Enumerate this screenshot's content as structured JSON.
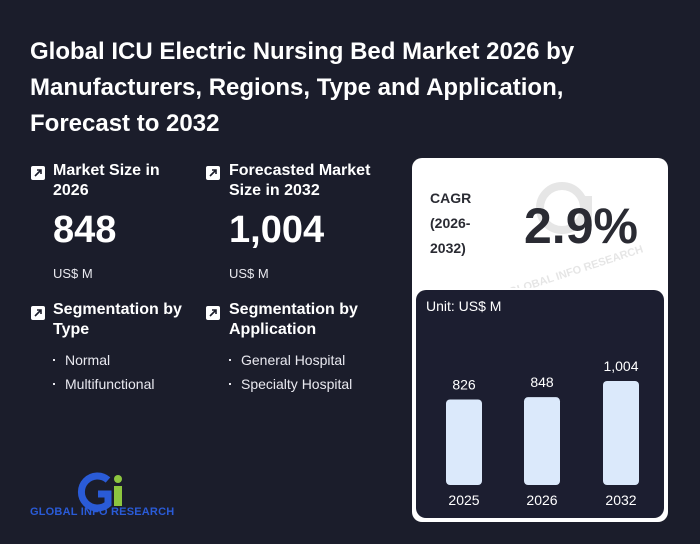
{
  "title": "Global ICU Electric Nursing Bed Market 2026 by Manufacturers, Regions, Type and Application, Forecast to 2032",
  "market_size": {
    "label": "Market Size in 2026",
    "value": "848",
    "unit": "US$ M"
  },
  "forecast": {
    "label": "Forecasted Market Size in 2032",
    "value": "1,004",
    "unit": "US$ M"
  },
  "seg_type": {
    "label": "Segmentation by Type",
    "items": [
      "Normal",
      "Multifunctional"
    ]
  },
  "seg_app": {
    "label": "Segmentation by Application",
    "items": [
      "General Hospital",
      "Specialty Hospital"
    ]
  },
  "cagr": {
    "label": "CAGR (2026-2032)",
    "value": "2.9%"
  },
  "watermark": "GLOBAL INFO RESEARCH",
  "logo": {
    "text": "GLOBAL INFO RESEARCH"
  },
  "colors": {
    "background": "#1b1d2b",
    "bar": "#dbe9fb",
    "panel": "#1c1e30",
    "logo_blue": "#2a5bd7",
    "logo_green": "#8dc63f"
  },
  "chart_data": {
    "type": "bar",
    "unit_label": "Unit: US$ M",
    "categories": [
      "2025",
      "2026",
      "2032"
    ],
    "values": [
      826,
      848,
      1004
    ],
    "value_labels": [
      "826",
      "848",
      "1,004"
    ]
  }
}
